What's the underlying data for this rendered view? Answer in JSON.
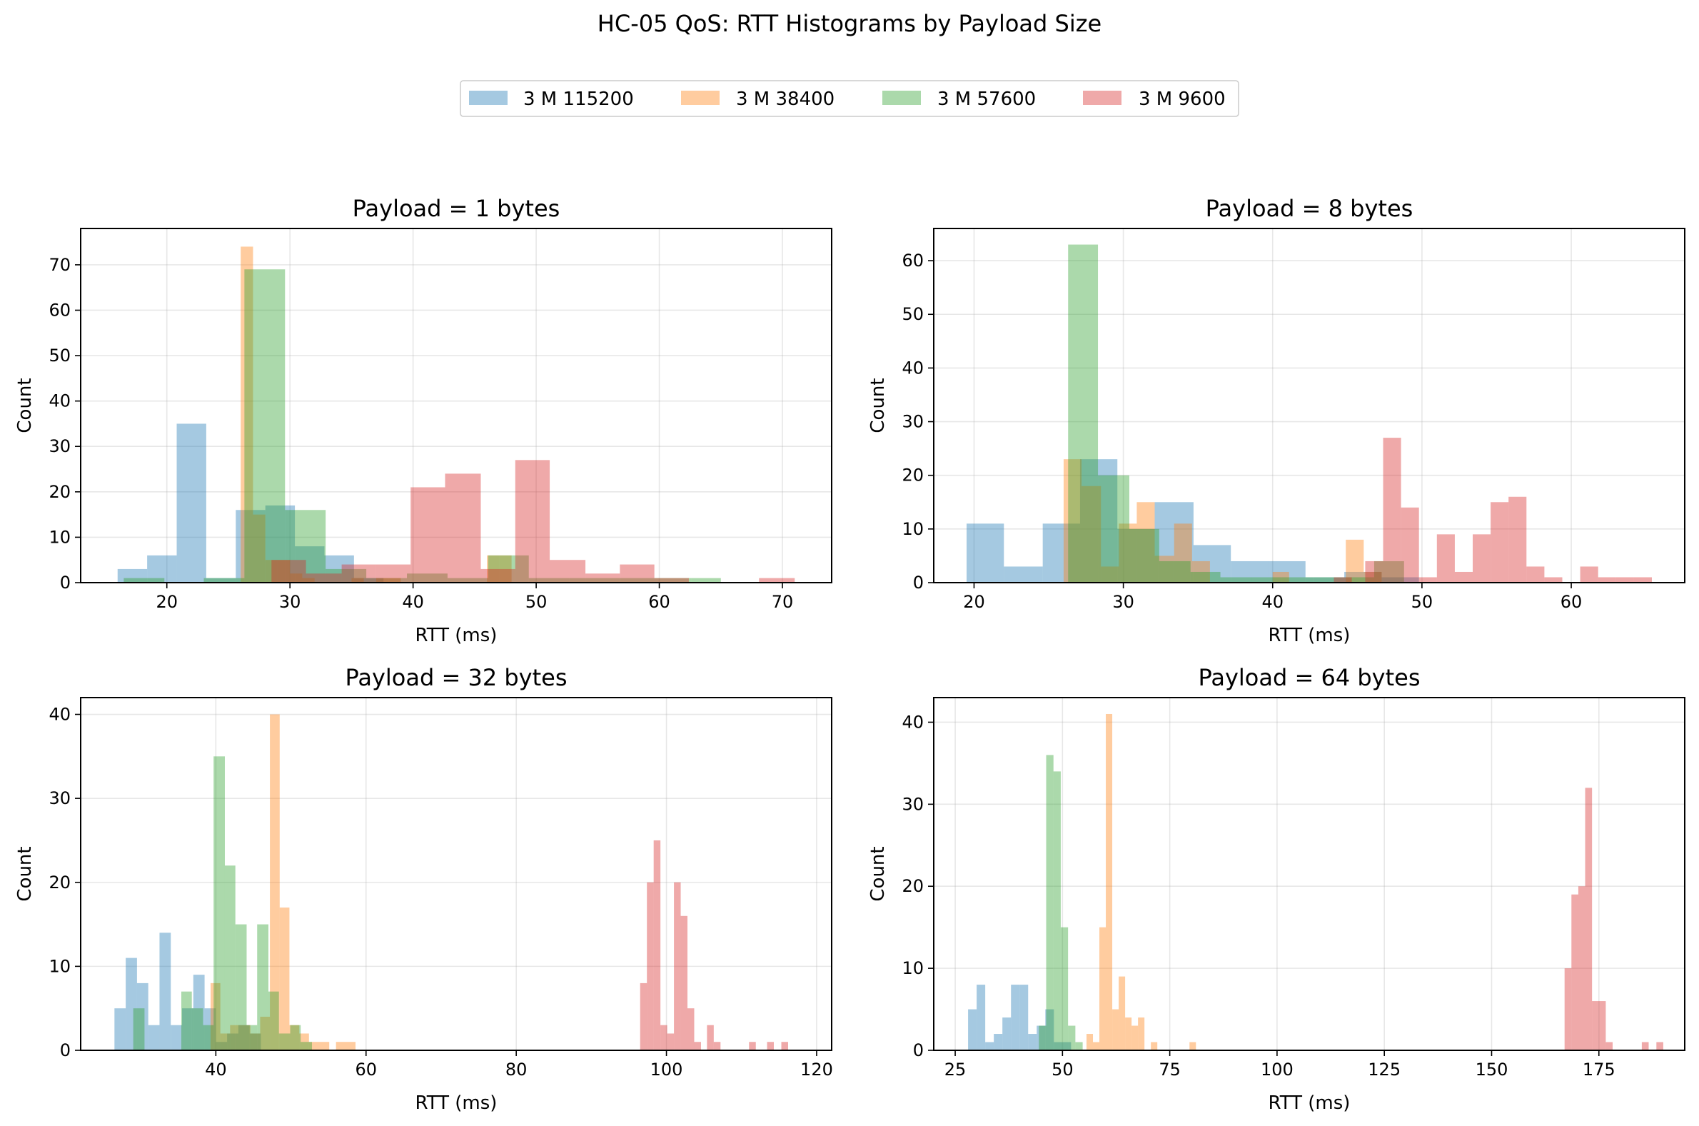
{
  "figure": {
    "title": "HC-05 QoS: RTT Histograms by Payload Size"
  },
  "legend": {
    "position": "top-center",
    "entries": [
      {
        "label": "3 M 115200",
        "color": "#1f77b4"
      },
      {
        "label": "3 M 38400",
        "color": "#ff7f0e"
      },
      {
        "label": "3 M 57600",
        "color": "#2ca02c"
      },
      {
        "label": "3 M 9600",
        "color": "#d62728"
      }
    ]
  },
  "chart_data": [
    {
      "type": "histogram",
      "title": "Payload = 1 bytes",
      "xlabel": "RTT (ms)",
      "ylabel": "Count",
      "xlim": [
        13,
        74
      ],
      "ylim": [
        0,
        78
      ],
      "xticks": [
        20,
        30,
        40,
        50,
        60,
        70
      ],
      "yticks": [
        0,
        10,
        20,
        30,
        40,
        50,
        60,
        70
      ],
      "grid": true,
      "series": [
        {
          "name": "3 M 115200",
          "bins": [
            [
              16,
              18.4,
              3
            ],
            [
              18.4,
              20.8,
              6
            ],
            [
              20.8,
              23.2,
              35
            ],
            [
              23.2,
              25.6,
              1
            ],
            [
              25.6,
              28,
              16
            ],
            [
              28,
              30.4,
              17
            ],
            [
              30.4,
              32.8,
              8
            ],
            [
              32.8,
              35.2,
              6
            ],
            [
              35.2,
              37.6,
              1
            ]
          ]
        },
        {
          "name": "3 M 38400",
          "bins": [
            [
              26,
              27,
              74
            ],
            [
              27,
              28,
              15
            ],
            [
              28,
              29,
              5
            ],
            [
              29,
              30,
              5
            ],
            [
              30,
              31,
              2
            ],
            [
              31,
              32,
              1
            ],
            [
              35,
              36,
              1
            ],
            [
              37,
              38,
              1
            ],
            [
              38,
              39,
              1
            ],
            [
              46,
              47,
              6
            ],
            [
              47,
              48,
              6
            ]
          ]
        },
        {
          "name": "3 M 57600",
          "bins": [
            [
              16.5,
              19.8,
              1
            ],
            [
              23,
              26.3,
              1
            ],
            [
              26.3,
              29.6,
              69
            ],
            [
              29.6,
              32.9,
              16
            ],
            [
              32.9,
              36.2,
              3
            ],
            [
              36.2,
              39.5,
              1
            ],
            [
              39.5,
              42.8,
              2
            ],
            [
              42.8,
              46.1,
              1
            ],
            [
              46.1,
              49.4,
              6
            ],
            [
              49.4,
              52.7,
              1
            ],
            [
              52.7,
              56,
              1
            ],
            [
              56,
              59.3,
              1
            ],
            [
              59.3,
              62.6,
              1
            ],
            [
              62.6,
              65,
              1
            ]
          ]
        },
        {
          "name": "3 M 9600",
          "bins": [
            [
              28.5,
              31.3,
              5
            ],
            [
              31.3,
              34.2,
              2
            ],
            [
              34.2,
              37,
              4
            ],
            [
              37,
              39.8,
              4
            ],
            [
              39.8,
              42.6,
              21
            ],
            [
              42.6,
              45.5,
              24
            ],
            [
              45.5,
              48.3,
              3
            ],
            [
              48.3,
              51.1,
              27
            ],
            [
              51.1,
              54,
              5
            ],
            [
              54,
              56.8,
              2
            ],
            [
              56.8,
              59.6,
              4
            ],
            [
              59.6,
              62.4,
              1
            ],
            [
              68.1,
              71,
              1
            ]
          ]
        }
      ]
    },
    {
      "type": "histogram",
      "title": "Payload = 8 bytes",
      "xlabel": "RTT (ms)",
      "ylabel": "Count",
      "xlim": [
        17.3,
        67.6
      ],
      "ylim": [
        0,
        66
      ],
      "xticks": [
        20,
        30,
        40,
        50,
        60
      ],
      "yticks": [
        0,
        10,
        20,
        30,
        40,
        50,
        60
      ],
      "grid": true,
      "series": [
        {
          "name": "3 M 115200",
          "bins": [
            [
              19.5,
              22,
              11
            ],
            [
              22,
              24.6,
              3
            ],
            [
              24.6,
              27.1,
              11
            ],
            [
              27.1,
              29.6,
              23
            ],
            [
              29.6,
              32.1,
              10
            ],
            [
              32.1,
              34.7,
              15
            ],
            [
              34.7,
              37.2,
              7
            ],
            [
              37.2,
              39.7,
              4
            ],
            [
              39.7,
              42.2,
              4
            ],
            [
              42.2,
              44.8,
              1
            ],
            [
              44.8,
              47.3,
              2
            ],
            [
              47.3,
              49.8,
              1
            ]
          ]
        },
        {
          "name": "3 M 38400",
          "bins": [
            [
              26,
              27.2,
              23
            ],
            [
              27.2,
              28.5,
              18
            ],
            [
              28.5,
              29.7,
              3
            ],
            [
              29.7,
              30.9,
              11
            ],
            [
              30.9,
              32.1,
              15
            ],
            [
              32.1,
              33.4,
              5
            ],
            [
              33.4,
              34.6,
              11
            ],
            [
              34.6,
              35.8,
              4
            ],
            [
              40,
              41.1,
              2
            ],
            [
              44.9,
              46.1,
              8
            ],
            [
              46.1,
              47.3,
              2
            ]
          ]
        },
        {
          "name": "3 M 57600",
          "bins": [
            [
              26.3,
              28.3,
              63
            ],
            [
              28.3,
              30.4,
              20
            ],
            [
              30.4,
              32.4,
              10
            ],
            [
              32.4,
              34.5,
              4
            ],
            [
              34.5,
              36.5,
              2
            ],
            [
              36.5,
              38.6,
              1
            ],
            [
              38.6,
              40.6,
              1
            ],
            [
              40.6,
              42.7,
              1
            ],
            [
              42.7,
              44.7,
              1
            ],
            [
              44.7,
              46.8,
              1
            ],
            [
              46.8,
              48.8,
              4
            ]
          ]
        },
        {
          "name": "3 M 9600",
          "bins": [
            [
              44.1,
              45.3,
              1
            ],
            [
              46.2,
              47.4,
              4
            ],
            [
              47.4,
              48.6,
              27
            ],
            [
              48.6,
              49.8,
              14
            ],
            [
              49.8,
              51,
              1
            ],
            [
              51,
              52.2,
              9
            ],
            [
              52.2,
              53.4,
              2
            ],
            [
              53.4,
              54.6,
              9
            ],
            [
              54.6,
              55.8,
              15
            ],
            [
              55.8,
              57,
              16
            ],
            [
              57,
              58.2,
              3
            ],
            [
              58.2,
              59.4,
              1
            ],
            [
              60.6,
              61.8,
              3
            ],
            [
              61.8,
              63,
              1
            ],
            [
              63,
              64.2,
              1
            ],
            [
              64.2,
              65.4,
              1
            ]
          ]
        }
      ]
    },
    {
      "type": "histogram",
      "title": "Payload = 32 bytes",
      "xlabel": "RTT (ms)",
      "ylabel": "Count",
      "xlim": [
        22,
        122
      ],
      "ylim": [
        0,
        42
      ],
      "xticks": [
        40,
        60,
        80,
        100,
        120
      ],
      "yticks": [
        0,
        10,
        20,
        30,
        40
      ],
      "grid": true,
      "series": [
        {
          "name": "3 M 115200",
          "bins": [
            [
              26.5,
              28,
              5
            ],
            [
              28,
              29.5,
              11
            ],
            [
              29.5,
              31,
              8
            ],
            [
              31,
              32.5,
              3
            ],
            [
              32.5,
              34,
              14
            ],
            [
              34,
              35.5,
              3
            ],
            [
              35.5,
              37,
              5
            ],
            [
              37,
              38.5,
              9
            ],
            [
              38.5,
              40,
              5
            ],
            [
              40,
              41.5,
              1
            ],
            [
              41.5,
              43,
              2
            ],
            [
              43,
              44.5,
              3
            ],
            [
              44.5,
              46,
              2
            ]
          ]
        },
        {
          "name": "3 M 38400",
          "bins": [
            [
              39.3,
              40.6,
              8
            ],
            [
              40.6,
              41.9,
              2
            ],
            [
              41.9,
              43.2,
              3
            ],
            [
              43.2,
              44.6,
              3
            ],
            [
              44.6,
              45.9,
              2
            ],
            [
              45.9,
              47.2,
              4
            ],
            [
              47.2,
              48.5,
              40
            ],
            [
              48.5,
              49.8,
              17
            ],
            [
              49.8,
              51.1,
              3
            ],
            [
              51.1,
              52.4,
              2
            ],
            [
              52.4,
              53.8,
              1
            ],
            [
              53.8,
              55.1,
              1
            ],
            [
              56,
              58.6,
              1
            ]
          ]
        },
        {
          "name": "3 M 57600",
          "bins": [
            [
              29,
              30.5,
              5
            ],
            [
              35.4,
              36.8,
              7
            ],
            [
              36.8,
              38.3,
              5
            ],
            [
              38.3,
              39.7,
              3
            ],
            [
              39.7,
              41.2,
              35
            ],
            [
              41.2,
              42.6,
              22
            ],
            [
              42.6,
              44.1,
              15
            ],
            [
              44.1,
              45.5,
              3
            ],
            [
              45.5,
              47,
              15
            ],
            [
              47,
              48.4,
              7
            ],
            [
              48.4,
              49.9,
              2
            ],
            [
              49.9,
              51.3,
              3
            ],
            [
              51.3,
              52.8,
              1
            ]
          ]
        },
        {
          "name": "3 M 9600",
          "bins": [
            [
              96.5,
              97.4,
              8
            ],
            [
              97.4,
              98.3,
              20
            ],
            [
              98.3,
              99.2,
              25
            ],
            [
              99.2,
              100.1,
              3
            ],
            [
              100.1,
              101,
              2
            ],
            [
              101,
              101.9,
              20
            ],
            [
              101.9,
              102.8,
              16
            ],
            [
              102.8,
              103.7,
              5
            ],
            [
              103.7,
              104.6,
              1
            ],
            [
              105.4,
              106.3,
              3
            ],
            [
              106.3,
              107.2,
              1
            ],
            [
              111,
              111.9,
              1
            ],
            [
              113.4,
              114.3,
              1
            ],
            [
              115.3,
              116.2,
              1
            ]
          ]
        }
      ]
    },
    {
      "type": "histogram",
      "title": "Payload = 64 bytes",
      "xlabel": "RTT (ms)",
      "ylabel": "Count",
      "xlim": [
        20,
        195
      ],
      "ylim": [
        0,
        43
      ],
      "xticks": [
        25,
        50,
        75,
        100,
        125,
        150,
        175
      ],
      "yticks": [
        0,
        10,
        20,
        30,
        40
      ],
      "grid": true,
      "series": [
        {
          "name": "3 M 115200",
          "bins": [
            [
              28,
              30,
              5
            ],
            [
              30,
              32,
              8
            ],
            [
              32,
              34,
              1
            ],
            [
              34,
              36,
              2
            ],
            [
              36,
              38,
              4
            ],
            [
              38,
              40,
              8
            ],
            [
              40,
              42,
              8
            ],
            [
              42,
              44,
              2
            ],
            [
              44,
              46,
              3
            ],
            [
              46,
              48,
              5
            ],
            [
              48,
              50,
              1
            ],
            [
              50,
              52,
              1
            ]
          ]
        },
        {
          "name": "3 M 38400",
          "bins": [
            [
              55.6,
              57.1,
              2
            ],
            [
              57.1,
              58.6,
              1
            ],
            [
              58.6,
              60.1,
              15
            ],
            [
              60.1,
              61.6,
              41
            ],
            [
              61.6,
              63.1,
              5
            ],
            [
              63.1,
              64.6,
              9
            ],
            [
              64.6,
              66.1,
              4
            ],
            [
              66.1,
              67.6,
              3
            ],
            [
              67.6,
              69.1,
              4
            ],
            [
              70.6,
              72.1,
              1
            ],
            [
              79.6,
              81.1,
              1
            ]
          ]
        },
        {
          "name": "3 M 57600",
          "bins": [
            [
              44.5,
              46.2,
              3
            ],
            [
              46.2,
              47.9,
              36
            ],
            [
              47.9,
              49.6,
              34
            ],
            [
              49.6,
              51.3,
              15
            ],
            [
              51.3,
              53,
              3
            ],
            [
              53,
              54.7,
              1
            ]
          ]
        },
        {
          "name": "3 M 9600",
          "bins": [
            [
              167,
              168.6,
              10
            ],
            [
              168.6,
              170.2,
              19
            ],
            [
              170.2,
              171.8,
              20
            ],
            [
              171.8,
              173.4,
              32
            ],
            [
              173.4,
              175,
              6
            ],
            [
              175,
              176.6,
              6
            ],
            [
              176.6,
              178.2,
              1
            ],
            [
              185,
              186.6,
              1
            ],
            [
              188.4,
              190,
              1
            ]
          ]
        }
      ]
    }
  ]
}
